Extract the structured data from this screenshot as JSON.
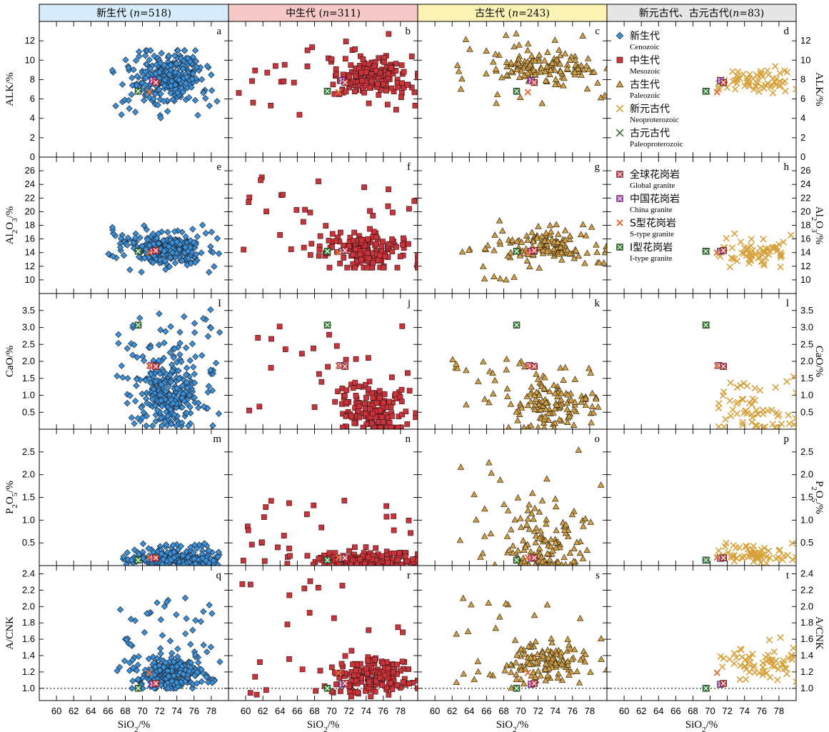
{
  "colors": {
    "cenozoic": "#3d8fd6",
    "mesozoic": "#c8343c",
    "paleozoic": "#cfa048",
    "neoproterozoic": "#d6a13a",
    "paleoproterozoic": "#2e6e2e",
    "global_granite": "#c8343c",
    "china_granite": "#b040b8",
    "s_type": "#e0703c",
    "i_type": "#2e7a2e",
    "header_cenozoic": "#d6ecfa",
    "header_mesozoic": "#f6c8c8",
    "header_paleozoic": "#fbf3b4",
    "header_proterozoic": "#e6e6e6"
  },
  "headers": [
    {
      "pre": "新生代 (",
      "italic": "n",
      "post": "=518)"
    },
    {
      "pre": "中生代 (",
      "italic": "n",
      "post": "=311)"
    },
    {
      "pre": "古生代 (",
      "italic": "n",
      "post": "=243)"
    },
    {
      "pre": "新元古代、古元古代(",
      "italic": "n",
      "post": "=83)"
    }
  ],
  "panel_labels": [
    "a",
    "b",
    "c",
    "d",
    "e",
    "f",
    "g",
    "h",
    "I",
    "j",
    "k",
    "l",
    "m",
    "n",
    "o",
    "p",
    "q",
    "r",
    "s",
    "t"
  ],
  "x_axis": {
    "label_main": "SiO",
    "label_sub": "2",
    "label_unit": "/%",
    "min": 58,
    "max": 80,
    "ticks": [
      60,
      62,
      64,
      66,
      68,
      70,
      72,
      74,
      76,
      78
    ]
  },
  "legend": {
    "eras": [
      {
        "zh": "新生代",
        "en": "Cenozoic",
        "marker": "diamond",
        "color_key": "cenozoic"
      },
      {
        "zh": "中生代",
        "en": "Mesozoic",
        "marker": "square",
        "color_key": "mesozoic"
      },
      {
        "zh": "古生代",
        "en": "Paleozoic",
        "marker": "triangle",
        "color_key": "paleozoic"
      },
      {
        "zh": "新元古代",
        "en": "Neoproterozoic",
        "marker": "cross",
        "color_key": "neoproterozoic"
      },
      {
        "zh": "古元古代",
        "en": "Paleoproterozoic",
        "marker": "cross",
        "color_key": "paleoproterozoic"
      }
    ],
    "references": [
      {
        "zh": "全球花岗岩",
        "en": "Global granite",
        "color_key": "global_granite"
      },
      {
        "zh": "中国花岗岩",
        "en": "China granite",
        "color_key": "china_granite"
      },
      {
        "zh": "S型花岗岩",
        "en": "S-type granite",
        "color_key": "s_type"
      },
      {
        "zh": "I型花岗岩",
        "en": "I-type granite",
        "color_key": "i_type"
      }
    ]
  },
  "chart_data": {
    "type": "scatter",
    "rows": [
      {
        "key": "alk",
        "ylabel_main": "ALK",
        "ylabel_sub": "",
        "ylabel_unit": "/%",
        "ylim": [
          0,
          14
        ],
        "ticks": [
          0,
          2,
          4,
          6,
          8,
          10,
          12
        ],
        "reference": {
          "global": [
            71.3,
            7.7
          ],
          "china": [
            71.2,
            7.9
          ],
          "s_type": [
            70.8,
            6.7
          ],
          "i_type": [
            69.5,
            6.8
          ]
        }
      },
      {
        "key": "al2o3",
        "ylabel_main": "Al",
        "ylabel_sub": "2",
        "ylabel_mid": "O",
        "ylabel_sub2": "3",
        "ylabel_unit": "/%",
        "ylim": [
          8,
          28
        ],
        "ticks": [
          10,
          12,
          14,
          16,
          18,
          20,
          22,
          24,
          26
        ],
        "reference": {
          "global": [
            71.3,
            14.3
          ],
          "china": [
            71.2,
            14.2
          ],
          "s_type": [
            70.8,
            14.0
          ],
          "i_type": [
            69.5,
            14.2
          ]
        }
      },
      {
        "key": "cao",
        "ylabel_main": "CaO",
        "ylabel_sub": "",
        "ylabel_unit": "/%",
        "ylim": [
          0,
          4
        ],
        "ticks": [
          0.5,
          1.0,
          1.5,
          2.0,
          2.5,
          3.0,
          3.5
        ],
        "reference": {
          "global": [
            71.3,
            1.85
          ],
          "china": [
            71.0,
            1.88
          ],
          "s_type": [
            70.8,
            1.87
          ],
          "i_type": [
            69.5,
            3.07
          ]
        }
      },
      {
        "key": "p2o5",
        "ylabel_main": "P",
        "ylabel_sub": "2",
        "ylabel_mid": "O",
        "ylabel_sub2": "5",
        "ylabel_unit": "/%",
        "ylim": [
          0,
          3
        ],
        "ticks": [
          0.5,
          1.0,
          1.5,
          2.0,
          2.5
        ],
        "reference": {
          "global": [
            71.3,
            0.17
          ],
          "china": [
            71.2,
            0.16
          ],
          "s_type": [
            70.8,
            0.18
          ],
          "i_type": [
            69.5,
            0.12
          ]
        }
      },
      {
        "key": "acnk",
        "ylabel_main": "A/CNK",
        "ylabel_sub": "",
        "ylabel_unit": "",
        "ylim": [
          0.85,
          2.5
        ],
        "ticks": [
          1.0,
          1.2,
          1.4,
          1.6,
          1.8,
          2.0,
          2.2,
          2.4
        ],
        "dashed_line": 1.0,
        "reference": {
          "global": [
            71.3,
            1.06
          ],
          "china": [
            71.2,
            1.05
          ],
          "s_type": [
            70.8,
            1.19
          ],
          "i_type": [
            69.5,
            1.0
          ]
        }
      }
    ],
    "columns": [
      {
        "key": "cenozoic",
        "marker": "diamond",
        "color_key": "cenozoic",
        "n": 518,
        "clusters": {
          "alk": {
            "xc": 73.3,
            "yc": 8.4,
            "sx": 1.8,
            "sy": 1.2,
            "xr": [
              66.5,
              79
            ],
            "yr": [
              4,
              11
            ]
          },
          "al2o3": {
            "xc": 73.0,
            "yc": 14.6,
            "sx": 2.0,
            "sy": 1.0,
            "xr": [
              66,
              79
            ],
            "yr": [
              11,
              18.5
            ]
          },
          "cao": {
            "xc": 73.0,
            "yc": 1.1,
            "sx": 1.8,
            "sy": 0.55,
            "xr": [
              67,
              79
            ],
            "yr": [
              0.1,
              3.6
            ]
          },
          "p2o5": {
            "xc": 73.5,
            "yc": 0.15,
            "sx": 2.2,
            "sy": 0.08,
            "xr": [
              67,
              79
            ],
            "yr": [
              0.02,
              0.5
            ]
          },
          "acnk": {
            "xc": 73.3,
            "yc": 1.18,
            "sx": 1.9,
            "sy": 0.1,
            "xr": [
              67,
              79
            ],
            "yr": [
              1.0,
              2.15
            ]
          }
        }
      },
      {
        "key": "mesozoic",
        "marker": "square",
        "color_key": "mesozoic",
        "n": 311,
        "clusters": {
          "alk": {
            "xc": 74.3,
            "yc": 8.3,
            "sx": 2.4,
            "sy": 1.0,
            "xr": [
              59,
              80
            ],
            "yr": [
              4.3,
              13
            ]
          },
          "al2o3": {
            "xc": 74.0,
            "yc": 14.0,
            "sx": 2.6,
            "sy": 1.5,
            "xr": [
              59,
              80
            ],
            "yr": [
              11.8,
              25.2
            ]
          },
          "cao": {
            "xc": 75.0,
            "yc": 0.6,
            "sx": 2.0,
            "sy": 0.4,
            "xr": [
              59,
              80
            ],
            "yr": [
              0.05,
              3.05
            ]
          },
          "p2o5": {
            "xc": 74.0,
            "yc": 0.12,
            "sx": 3.0,
            "sy": 0.1,
            "xr": [
              59,
              80
            ],
            "yr": [
              0.02,
              1.45
            ]
          },
          "acnk": {
            "xc": 75.0,
            "yc": 1.15,
            "sx": 2.2,
            "sy": 0.1,
            "xr": [
              59,
              80
            ],
            "yr": [
              0.9,
              2.4
            ]
          }
        }
      },
      {
        "key": "paleozoic",
        "marker": "triangle",
        "color_key": "paleozoic",
        "n": 243,
        "clusters": {
          "alk": {
            "xc": 72.5,
            "yc": 9.3,
            "sx": 2.6,
            "sy": 0.8,
            "xr": [
              62,
              80
            ],
            "yr": [
              5.5,
              13
            ]
          },
          "al2o3": {
            "xc": 72.5,
            "yc": 15.0,
            "sx": 2.8,
            "sy": 1.3,
            "xr": [
              62,
              80
            ],
            "yr": [
              9.5,
              19.5
            ]
          },
          "cao": {
            "xc": 73.5,
            "yc": 0.7,
            "sx": 2.4,
            "sy": 0.4,
            "xr": [
              62,
              80
            ],
            "yr": [
              0.05,
              2.15
            ]
          },
          "p2o5": {
            "xc": 72.5,
            "yc": 0.45,
            "sx": 2.6,
            "sy": 0.45,
            "xr": [
              62,
              80
            ],
            "yr": [
              0.02,
              2.55
            ]
          },
          "acnk": {
            "xc": 73.0,
            "yc": 1.3,
            "sx": 2.6,
            "sy": 0.12,
            "xr": [
              62,
              80
            ],
            "yr": [
              0.98,
              2.2
            ]
          }
        }
      },
      {
        "key": "proterozoic",
        "marker": "cross",
        "color_key": "neoproterozoic",
        "n": 83,
        "clusters": {
          "alk": {
            "xc": 75.5,
            "yc": 7.8,
            "sx": 2.2,
            "sy": 0.5,
            "xr": [
              71,
              80
            ],
            "yr": [
              6,
              9.5
            ]
          },
          "al2o3": {
            "xc": 75.0,
            "yc": 14.0,
            "sx": 2.3,
            "sy": 1.0,
            "xr": [
              71,
              80
            ],
            "yr": [
              11,
              16.8
            ]
          },
          "cao": {
            "xc": 75.5,
            "yc": 0.5,
            "sx": 2.2,
            "sy": 0.35,
            "xr": [
              71,
              80
            ],
            "yr": [
              0.05,
              1.7
            ]
          },
          "p2o5": {
            "xc": 75.5,
            "yc": 0.25,
            "sx": 2.2,
            "sy": 0.08,
            "xr": [
              71,
              80
            ],
            "yr": [
              0.05,
              0.6
            ]
          },
          "acnk": {
            "xc": 76.0,
            "yc": 1.3,
            "sx": 2.0,
            "sy": 0.1,
            "xr": [
              71,
              80
            ],
            "yr": [
              1.05,
              1.65
            ]
          }
        }
      }
    ]
  }
}
